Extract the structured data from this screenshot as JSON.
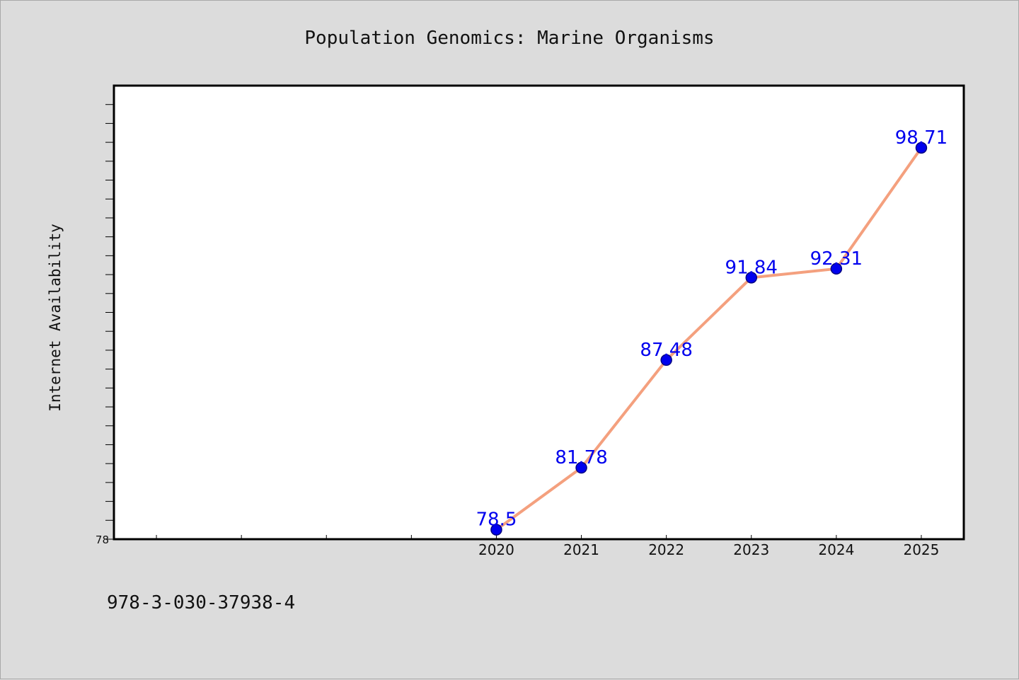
{
  "chart_data": {
    "type": "line",
    "title": "Population Genomics: Marine Organisms",
    "ylabel": "Internet Availability",
    "xlabel": "",
    "x": [
      2020,
      2021,
      2022,
      2023,
      2024,
      2025
    ],
    "x_tick_labels": [
      "2020",
      "2021",
      "2022",
      "2023",
      "2024",
      "2025"
    ],
    "xlim": [
      2015.5,
      2025.5
    ],
    "y": [
      78.5,
      81.78,
      87.48,
      91.84,
      92.31,
      98.71
    ],
    "data_labels": [
      "78.5",
      "81.78",
      "87.48",
      "91.84",
      "92.31",
      "98.71"
    ],
    "ylim": [
      78,
      102
    ],
    "y_tick_labels": [
      "78"
    ],
    "y_minor_tick_step": 1,
    "grid": false,
    "legend": "none",
    "colors": {
      "line": "#f4a07e",
      "marker_fill": "#0000ee",
      "marker_edge": "#000080",
      "data_label": "#0000ee",
      "plot_background": "#ffffff",
      "figure_background": "#dcdcdc"
    }
  },
  "footer": {
    "id_text": "978-3-030-37938-4"
  }
}
